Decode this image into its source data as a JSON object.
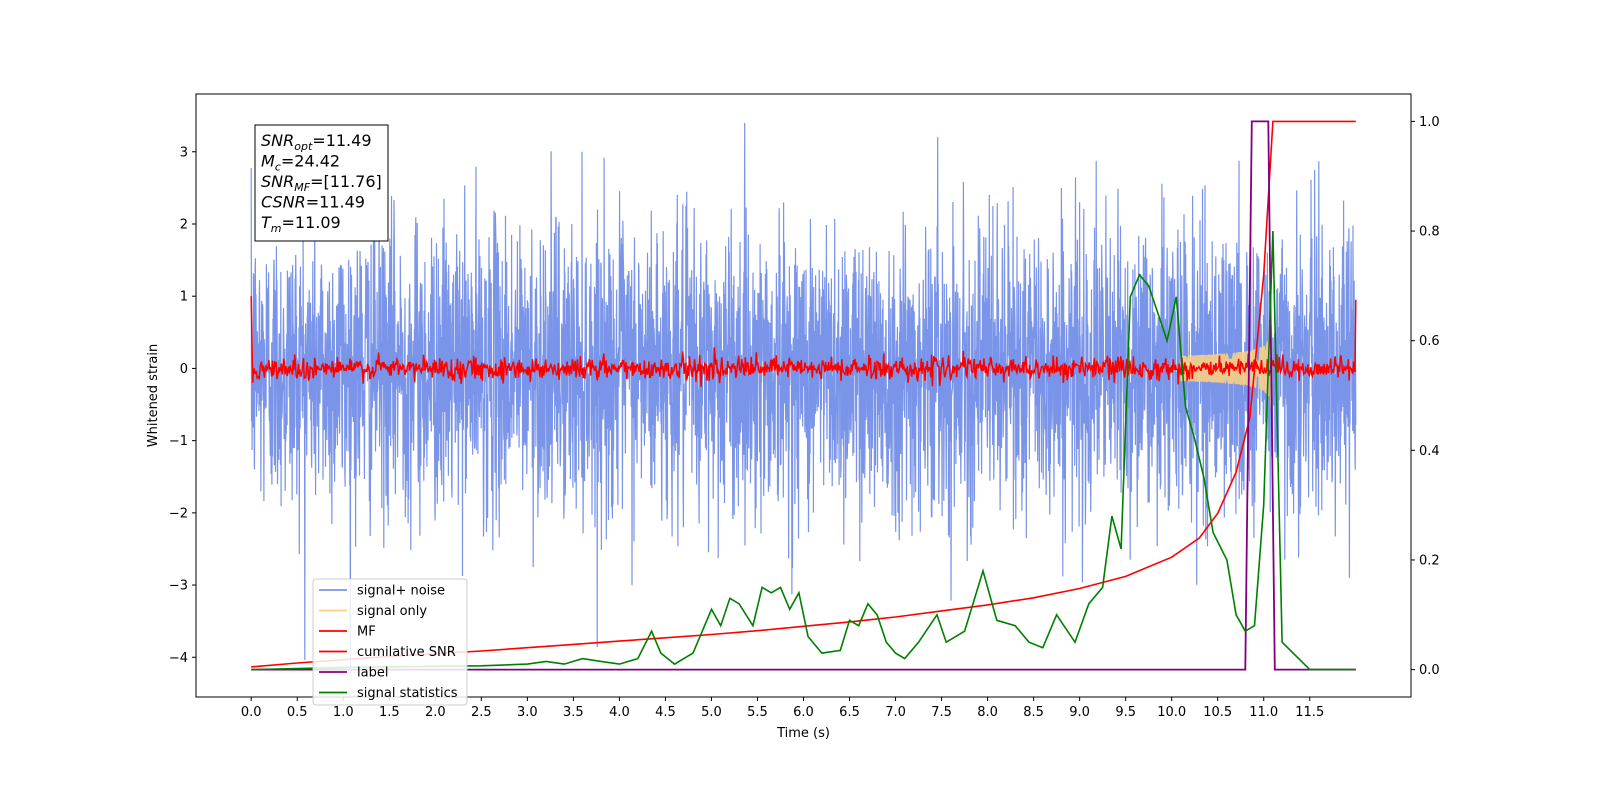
{
  "chart_data": {
    "type": "line",
    "xlabel": "Time (s)",
    "ylabel": "Whitened strain",
    "xlim": [
      -0.6,
      12.6
    ],
    "ylim_left": [
      -4.55,
      3.8
    ],
    "ylim_right": [
      -0.05,
      1.05
    ],
    "xticks": [
      "0.0",
      "0.5",
      "1.0",
      "1.5",
      "2.0",
      "2.5",
      "3.0",
      "3.5",
      "4.0",
      "4.5",
      "5.0",
      "5.5",
      "6.0",
      "6.5",
      "7.0",
      "7.5",
      "8.0",
      "8.5",
      "9.0",
      "9.5",
      "10.0",
      "10.5",
      "11.0",
      "11.5"
    ],
    "xtick_values": [
      0,
      0.5,
      1,
      1.5,
      2,
      2.5,
      3,
      3.5,
      4,
      4.5,
      5,
      5.5,
      6,
      6.5,
      7,
      7.5,
      8,
      8.5,
      9,
      9.5,
      10,
      10.5,
      11,
      11.5
    ],
    "yticks_left": [
      "3",
      "2",
      "1",
      "0",
      "−1",
      "−2",
      "−3",
      "−4"
    ],
    "ytick_left_values": [
      3,
      2,
      1,
      0,
      -1,
      -2,
      -3,
      -4
    ],
    "yticks_right": [
      "1.0",
      "0.8",
      "0.6",
      "0.4",
      "0.2",
      "0.0"
    ],
    "ytick_right_values": [
      1.0,
      0.8,
      0.6,
      0.4,
      0.2,
      0.0
    ],
    "annotation": {
      "lines": [
        {
          "main": "SNR",
          "sub": "opt",
          "rest": "=11.49"
        },
        {
          "main": "M",
          "sub": "c",
          "rest": "=24.42"
        },
        {
          "main": "SNR",
          "sub": "MF",
          "rest": "=[11.76]"
        },
        {
          "main": "CSNR",
          "sub": "",
          "rest": "=11.49"
        },
        {
          "main": "T",
          "sub": "m",
          "rest": "=11.09"
        }
      ]
    },
    "legend": {
      "placement": "lower-left",
      "entries": [
        {
          "label": "signal+ noise",
          "color": "#7994e8"
        },
        {
          "label": "signal only",
          "color": "#f7cf86"
        },
        {
          "label": "MF",
          "color": "#ff0000"
        },
        {
          "label": "cumilative SNR",
          "color": "#ff0000"
        },
        {
          "label": "label",
          "color": "#800080"
        },
        {
          "label": "signal statistics",
          "color": "#008000"
        }
      ]
    },
    "series": [
      {
        "name": "signal+ noise",
        "axis": "left",
        "color": "#7994e8",
        "x_range": [
          0.0,
          12.0
        ],
        "mean": 0.0,
        "std": 1.0,
        "ylim": [
          -4.2,
          3.4
        ]
      },
      {
        "name": "signal only",
        "axis": "left",
        "color": "#f7cf86",
        "x_range": [
          10.1,
          11.09
        ],
        "peak_amplitude": 0.85
      },
      {
        "name": "MF",
        "axis": "left",
        "color": "#ff0000",
        "x_range": [
          0.0,
          12.0
        ],
        "level": 0.0,
        "std": 0.08,
        "start_value": 1.0,
        "end_value": 0.95
      },
      {
        "name": "cumilative SNR",
        "axis": "right",
        "x": [
          0.0,
          0.5,
          1.0,
          1.5,
          2.0,
          2.5,
          3.0,
          3.5,
          4.0,
          4.5,
          5.0,
          5.5,
          6.0,
          6.5,
          7.0,
          7.5,
          8.0,
          8.5,
          9.0,
          9.5,
          10.0,
          10.3,
          10.5,
          10.7,
          10.85,
          11.0,
          11.1,
          11.2,
          12.0
        ],
        "y": [
          0.005,
          0.012,
          0.018,
          0.024,
          0.029,
          0.034,
          0.04,
          0.046,
          0.052,
          0.058,
          0.064,
          0.071,
          0.079,
          0.087,
          0.096,
          0.107,
          0.118,
          0.131,
          0.148,
          0.17,
          0.205,
          0.24,
          0.285,
          0.36,
          0.46,
          0.72,
          1.0,
          1.0,
          1.0
        ]
      },
      {
        "name": "label",
        "axis": "right",
        "x": [
          0.0,
          10.8,
          10.87,
          11.05,
          11.12,
          12.0
        ],
        "y": [
          0.0,
          0.0,
          1.0,
          1.0,
          0.0,
          0.0
        ]
      },
      {
        "name": "signal statistics",
        "axis": "right",
        "x": [
          0.0,
          0.5,
          1.0,
          1.5,
          2.0,
          2.5,
          3.0,
          3.2,
          3.4,
          3.6,
          3.8,
          4.0,
          4.2,
          4.35,
          4.45,
          4.6,
          4.8,
          5.0,
          5.1,
          5.2,
          5.3,
          5.45,
          5.55,
          5.65,
          5.75,
          5.85,
          5.95,
          6.05,
          6.2,
          6.4,
          6.5,
          6.6,
          6.7,
          6.8,
          6.9,
          7.0,
          7.1,
          7.25,
          7.45,
          7.55,
          7.75,
          7.95,
          8.1,
          8.3,
          8.45,
          8.6,
          8.75,
          8.95,
          9.1,
          9.25,
          9.35,
          9.45,
          9.55,
          9.65,
          9.75,
          9.85,
          9.95,
          10.05,
          10.15,
          10.25,
          10.35,
          10.45,
          10.6,
          10.7,
          10.8,
          10.9,
          11.0,
          11.1,
          11.2,
          11.5,
          12.0
        ],
        "y": [
          0.0,
          0.002,
          0.004,
          0.005,
          0.006,
          0.007,
          0.01,
          0.015,
          0.01,
          0.02,
          0.015,
          0.01,
          0.02,
          0.07,
          0.03,
          0.01,
          0.03,
          0.11,
          0.08,
          0.13,
          0.12,
          0.08,
          0.15,
          0.14,
          0.15,
          0.11,
          0.14,
          0.06,
          0.03,
          0.035,
          0.09,
          0.08,
          0.12,
          0.1,
          0.05,
          0.03,
          0.02,
          0.05,
          0.1,
          0.05,
          0.07,
          0.18,
          0.09,
          0.08,
          0.05,
          0.04,
          0.1,
          0.05,
          0.12,
          0.15,
          0.28,
          0.22,
          0.68,
          0.72,
          0.7,
          0.65,
          0.6,
          0.68,
          0.48,
          0.42,
          0.35,
          0.25,
          0.2,
          0.1,
          0.07,
          0.08,
          0.3,
          0.8,
          0.05,
          0.0,
          0.0
        ]
      }
    ]
  }
}
